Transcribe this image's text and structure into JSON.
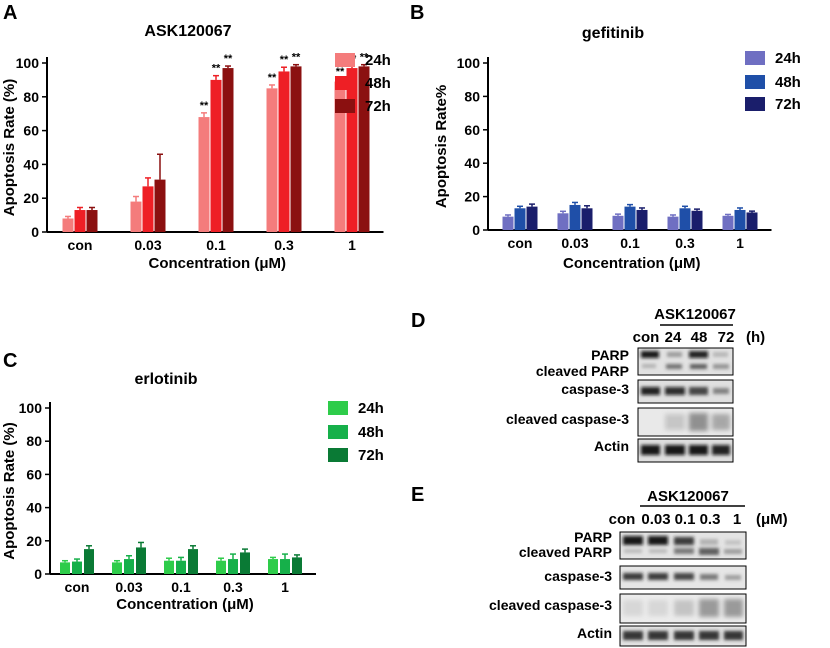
{
  "panels": {
    "A": "A",
    "B": "B",
    "C": "C",
    "D": "D",
    "E": "E"
  },
  "chart_data": [
    {
      "type": "bar",
      "panel": "A",
      "title": "ASK120067",
      "xlabel": "Concentration (μM)",
      "ylabel": "Apoptosis Rate (%)",
      "ylim": [
        0,
        100
      ],
      "yticks": [
        0,
        20,
        40,
        60,
        80,
        100
      ],
      "categories": [
        "con",
        "0.03",
        "0.1",
        "0.3",
        "1"
      ],
      "series": [
        {
          "name": "24h",
          "color": "#F47C7C",
          "values": [
            8,
            18,
            68,
            85,
            89
          ],
          "errors": [
            1.2,
            3,
            2.5,
            2,
            1.5
          ],
          "sig": [
            "",
            "",
            "**",
            "**",
            "**"
          ]
        },
        {
          "name": "48h",
          "color": "#EE1F25",
          "values": [
            13,
            27,
            90,
            95,
            97
          ],
          "errors": [
            1.5,
            5,
            2.5,
            2.5,
            1.2
          ],
          "sig": [
            "",
            "",
            "**",
            "**",
            "**"
          ]
        },
        {
          "name": "72h",
          "color": "#8B1010",
          "values": [
            13,
            31,
            97,
            98,
            98
          ],
          "errors": [
            1.5,
            15,
            1.2,
            1,
            1
          ],
          "sig": [
            "",
            "",
            "**",
            "**",
            "**"
          ]
        }
      ]
    },
    {
      "type": "bar",
      "panel": "B",
      "title": "gefitinib",
      "xlabel": "Concentration (μM)",
      "ylabel": "Apoptosis Rate%",
      "ylim": [
        0,
        100
      ],
      "yticks": [
        0,
        20,
        40,
        60,
        80,
        100
      ],
      "categories": [
        "con",
        "0.03",
        "0.1",
        "0.3",
        "1"
      ],
      "series": [
        {
          "name": "24h",
          "color": "#6F6FC2",
          "values": [
            8,
            10,
            8.5,
            8,
            8.5
          ],
          "errors": [
            1,
            1.2,
            1,
            1,
            0.8
          ],
          "sig": [
            "",
            "",
            "",
            "",
            ""
          ]
        },
        {
          "name": "48h",
          "color": "#1F4FA8",
          "values": [
            13,
            15,
            14,
            13,
            12
          ],
          "errors": [
            1.2,
            1.5,
            1.2,
            1.2,
            1.2
          ],
          "sig": [
            "",
            "",
            "",
            "",
            ""
          ]
        },
        {
          "name": "72h",
          "color": "#1A1E6B",
          "values": [
            14,
            13,
            12,
            11.5,
            10.5
          ],
          "errors": [
            1.5,
            1.5,
            1.2,
            1,
            0.8
          ],
          "sig": [
            "",
            "",
            "",
            "",
            ""
          ]
        }
      ]
    },
    {
      "type": "bar",
      "panel": "C",
      "title": "erlotinib",
      "xlabel": "Concentration (μM)",
      "ylabel": "Apoptosis Rate (%)",
      "ylim": [
        0,
        100
      ],
      "yticks": [
        0,
        20,
        40,
        60,
        80,
        100
      ],
      "categories": [
        "con",
        "0.03",
        "0.1",
        "0.3",
        "1"
      ],
      "series": [
        {
          "name": "24h",
          "color": "#2ECC4A",
          "values": [
            7,
            7,
            8,
            8,
            9
          ],
          "errors": [
            1,
            1,
            1.5,
            1.5,
            1
          ],
          "sig": [
            "",
            "",
            "",
            "",
            ""
          ]
        },
        {
          "name": "48h",
          "color": "#16B04A",
          "values": [
            7.5,
            9,
            8,
            9,
            9
          ],
          "errors": [
            1.5,
            2,
            2,
            3,
            3
          ],
          "sig": [
            "",
            "",
            "",
            "",
            ""
          ]
        },
        {
          "name": "72h",
          "color": "#0A7A35",
          "values": [
            15,
            16,
            15,
            13,
            10
          ],
          "errors": [
            2,
            3,
            2,
            2,
            1.5
          ],
          "sig": [
            "",
            "",
            "",
            "",
            ""
          ]
        }
      ]
    }
  ],
  "blot_d": {
    "header": "ASK120067",
    "lanes": [
      "con",
      "24",
      "48",
      "72"
    ],
    "unit": "(h)",
    "labels": [
      "PARP",
      "cleaved PARP",
      "caspase-3",
      "cleaved caspase-3",
      "Actin"
    ]
  },
  "blot_e": {
    "header": "ASK120067",
    "lanes": [
      "con",
      "0.03",
      "0.1",
      "0.3",
      "1"
    ],
    "unit": "(μM)",
    "labels": [
      "PARP",
      "cleaved PARP",
      "caspase-3",
      "cleaved caspase-3",
      "Actin"
    ]
  }
}
